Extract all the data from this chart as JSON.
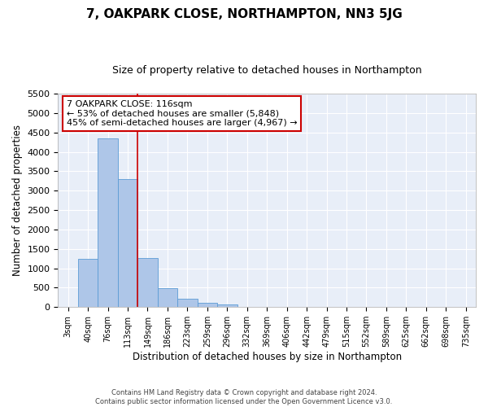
{
  "title": "7, OAKPARK CLOSE, NORTHAMPTON, NN3 5JG",
  "subtitle": "Size of property relative to detached houses in Northampton",
  "xlabel": "Distribution of detached houses by size in Northampton",
  "ylabel": "Number of detached properties",
  "footer_line1": "Contains HM Land Registry data © Crown copyright and database right 2024.",
  "footer_line2": "Contains public sector information licensed under the Open Government Licence v3.0.",
  "bar_labels": [
    "3sqm",
    "40sqm",
    "76sqm",
    "113sqm",
    "149sqm",
    "186sqm",
    "223sqm",
    "259sqm",
    "296sqm",
    "332sqm",
    "369sqm",
    "406sqm",
    "442sqm",
    "479sqm",
    "515sqm",
    "552sqm",
    "589sqm",
    "625sqm",
    "662sqm",
    "698sqm",
    "735sqm"
  ],
  "bar_values": [
    0,
    1250,
    4350,
    3300,
    1270,
    490,
    210,
    100,
    70,
    0,
    0,
    0,
    0,
    0,
    0,
    0,
    0,
    0,
    0,
    0,
    0
  ],
  "bar_color": "#aec6e8",
  "bar_edge_color": "#5b9bd5",
  "ylim": [
    0,
    5500
  ],
  "yticks": [
    0,
    500,
    1000,
    1500,
    2000,
    2500,
    3000,
    3500,
    4000,
    4500,
    5000,
    5500
  ],
  "vline_x_index": 3.5,
  "vline_color": "#cc0000",
  "annotation_text": "7 OAKPARK CLOSE: 116sqm\n← 53% of detached houses are smaller (5,848)\n45% of semi-detached houses are larger (4,967) →",
  "annotation_box_color": "white",
  "annotation_box_edge": "#cc0000",
  "background_color": "#e8eef8",
  "title_fontsize": 11,
  "subtitle_fontsize": 9,
  "annotation_fontsize": 8
}
